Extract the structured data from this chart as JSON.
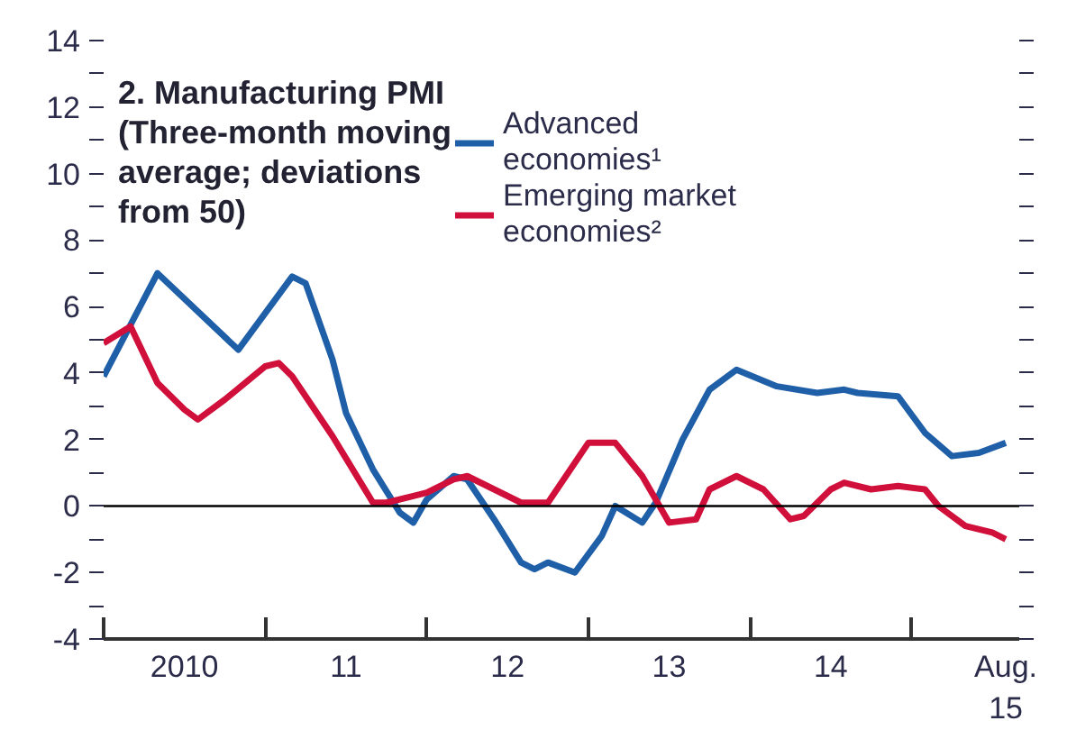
{
  "chart_data": {
    "type": "line",
    "title": "2. Manufacturing PMI",
    "subtitle": "(Three-month moving average; deviations from 50)",
    "xlim": [
      "2010-01",
      "2015-09"
    ],
    "xticks": [
      {
        "value": "2010-01",
        "label": null
      },
      {
        "value": "2010-07",
        "label": "2010"
      },
      {
        "value": "2011-01",
        "label": null
      },
      {
        "value": "2011-07",
        "label": "11"
      },
      {
        "value": "2012-01",
        "label": null
      },
      {
        "value": "2012-07",
        "label": "12"
      },
      {
        "value": "2013-01",
        "label": null
      },
      {
        "value": "2013-07",
        "label": "13"
      },
      {
        "value": "2014-01",
        "label": null
      },
      {
        "value": "2014-07",
        "label": "14"
      },
      {
        "value": "2015-01",
        "label": null
      },
      {
        "value": "2015-08",
        "label": "Aug.\n15"
      }
    ],
    "ylim": [
      -4,
      14
    ],
    "yticks": [
      -4,
      {
        "value": -3,
        "label": null
      },
      -2,
      {
        "value": -1,
        "label": null
      },
      0,
      {
        "value": 1,
        "label": null
      },
      2,
      {
        "value": 3,
        "label": null
      },
      4,
      {
        "value": 5,
        "label": null
      },
      6,
      {
        "value": 7,
        "label": null
      },
      8,
      {
        "value": 9,
        "label": null
      },
      10,
      {
        "value": 11,
        "label": null
      },
      12,
      {
        "value": 13,
        "label": null
      },
      14
    ],
    "ref_lines": [
      {
        "axis": "y",
        "value": 0,
        "color": "#000000"
      }
    ],
    "legend": "top right",
    "line_style": "solid",
    "grid": false,
    "series": [
      {
        "name": "Advanced economies¹",
        "color": "#1f5fa8",
        "x": [
          "2010-01",
          "2010-05",
          "2010-11",
          "2011-03",
          "2011-04",
          "2011-06",
          "2011-07",
          "2011-09",
          "2011-11",
          "2011-12",
          "2012-01",
          "2012-03",
          "2012-04",
          "2012-06",
          "2012-08",
          "2012-09",
          "2012-10",
          "2012-12",
          "2013-02",
          "2013-03",
          "2013-05",
          "2013-06",
          "2013-08",
          "2013-10",
          "2013-12",
          "2014-03",
          "2014-06",
          "2014-08",
          "2014-09",
          "2014-12",
          "2015-02",
          "2015-04",
          "2015-06",
          "2015-08"
        ],
        "values": [
          3.9,
          7.0,
          4.7,
          6.9,
          6.7,
          4.4,
          2.8,
          1.1,
          -0.2,
          -0.5,
          0.2,
          0.9,
          0.8,
          -0.4,
          -1.7,
          -1.9,
          -1.7,
          -2.0,
          -0.9,
          0.0,
          -0.5,
          0.1,
          2.0,
          3.5,
          4.1,
          3.6,
          3.4,
          3.5,
          3.4,
          3.3,
          2.2,
          1.5,
          1.6,
          1.9
        ]
      },
      {
        "name": "Emerging market economies²",
        "color": "#d0103a",
        "x": [
          "2010-01",
          "2010-03",
          "2010-05",
          "2010-07",
          "2010-08",
          "2010-10",
          "2011-01",
          "2011-02",
          "2011-03",
          "2011-06",
          "2011-09",
          "2011-10",
          "2011-12",
          "2012-01",
          "2012-03",
          "2012-04",
          "2012-06",
          "2012-08",
          "2012-10",
          "2013-01",
          "2013-03",
          "2013-05",
          "2013-07",
          "2013-09",
          "2013-10",
          "2013-12",
          "2014-02",
          "2014-04",
          "2014-05",
          "2014-07",
          "2014-08",
          "2014-10",
          "2014-12",
          "2015-02",
          "2015-03",
          "2015-05",
          "2015-07",
          "2015-08"
        ],
        "values": [
          4.9,
          5.4,
          3.7,
          2.9,
          2.6,
          3.2,
          4.2,
          4.3,
          3.9,
          2.1,
          0.1,
          0.1,
          0.3,
          0.4,
          0.8,
          0.9,
          0.5,
          0.1,
          0.1,
          1.9,
          1.9,
          0.9,
          -0.5,
          -0.4,
          0.5,
          0.9,
          0.5,
          -0.4,
          -0.3,
          0.5,
          0.7,
          0.5,
          0.6,
          0.5,
          0.0,
          -0.6,
          -0.8,
          -1.0
        ]
      }
    ]
  }
}
